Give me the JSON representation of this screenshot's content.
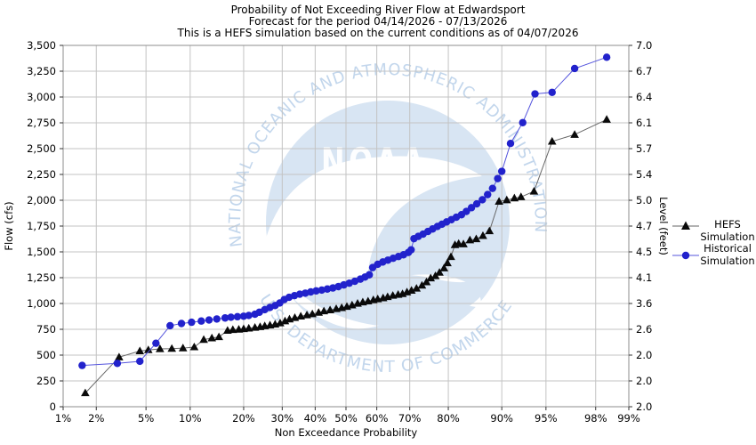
{
  "title": {
    "line1": "Probability of Not Exceeding River Flow at Edwardsport",
    "line2": "Forecast for the period  04/14/2026 - 07/13/2026",
    "line3": "This is a HEFS simulation based on the current conditions as of 04/07/2026"
  },
  "watermark": {
    "ring_text_top": "NATIONAL OCEANIC AND ATMOSPHERIC ADMINISTRATION",
    "ring_text_bottom": "U.S. DEPARTMENT OF COMMERCE",
    "acronym": "NOAA",
    "circle_color": "#d8e5f3",
    "ring_text_color": "#c2d6ec",
    "gull_color": "#ffffff"
  },
  "legend": {
    "items": [
      {
        "lines": [
          "HEFS",
          "Simulation"
        ],
        "marker": "triangle"
      },
      {
        "lines": [
          "Historical",
          "Simulation"
        ],
        "marker": "circle"
      }
    ]
  },
  "chart_data": {
    "type": "line",
    "x_scale": "normal-probability",
    "title": "Probability of Not Exceeding River Flow at Edwardsport",
    "xlabel": "Non Exceedance Probability",
    "ylabel_left": "Flow (cfs)",
    "ylabel_right": "Level (feet)",
    "xlim_percent": [
      1,
      99
    ],
    "ylim": [
      0,
      3500
    ],
    "grid": true,
    "legend_position": "right-outside",
    "x_ticks_percent": [
      1,
      2,
      5,
      10,
      20,
      30,
      40,
      50,
      60,
      70,
      80,
      90,
      95,
      98,
      99
    ],
    "x_tick_labels": [
      "1%",
      "2%",
      "5%",
      "10%",
      "20%",
      "30%",
      "40%",
      "50%",
      "60%",
      "70%",
      "80%",
      "90%",
      "95%",
      "98%",
      "99%"
    ],
    "y_ticks_flow": [
      0,
      250,
      500,
      750,
      1000,
      1250,
      1500,
      1750,
      2000,
      2250,
      2500,
      2750,
      3000,
      3250,
      3500
    ],
    "y_tick_labels_flow": [
      "0",
      "250",
      "500",
      "750",
      "1,000",
      "1,250",
      "1,500",
      "1,750",
      "2,000",
      "2,250",
      "2,500",
      "2,750",
      "3,000",
      "3,250",
      "3,500"
    ],
    "y_tick_labels_level": [
      "2.0",
      "2.0",
      "2.0",
      "2.6",
      "3.6",
      "4.1",
      "4.5",
      "4.7",
      "5.0",
      "5.4",
      "5.7",
      "6.1",
      "6.4",
      "6.7",
      "7.0"
    ],
    "colors": {
      "grid": "#c3c3c3",
      "border": "#8c8c8c",
      "hefs_marker": "#0a0a0a",
      "hefs_line": "#666666",
      "historical_marker": "#2222cc",
      "historical_line": "#5555dd"
    },
    "series": [
      {
        "name": "HEFS Simulation",
        "marker": "triangle",
        "points": [
          [
            1.6,
            133
          ],
          [
            3.1,
            480
          ],
          [
            4.5,
            540
          ],
          [
            5.2,
            550
          ],
          [
            6.3,
            560
          ],
          [
            7.6,
            563
          ],
          [
            9.0,
            568
          ],
          [
            10.6,
            578
          ],
          [
            12.1,
            650
          ],
          [
            13.5,
            665
          ],
          [
            14.8,
            676
          ],
          [
            16.5,
            738
          ],
          [
            17.6,
            746
          ],
          [
            18.9,
            749
          ],
          [
            20.0,
            754
          ],
          [
            21.2,
            760
          ],
          [
            22.7,
            767
          ],
          [
            24.0,
            774
          ],
          [
            25.2,
            782
          ],
          [
            26.6,
            790
          ],
          [
            28.0,
            798
          ],
          [
            29.4,
            810
          ],
          [
            30.8,
            830
          ],
          [
            32.1,
            848
          ],
          [
            33.7,
            862
          ],
          [
            35.5,
            876
          ],
          [
            37.4,
            888
          ],
          [
            39.1,
            898
          ],
          [
            41.1,
            912
          ],
          [
            42.8,
            926
          ],
          [
            44.8,
            936
          ],
          [
            46.8,
            948
          ],
          [
            48.6,
            958
          ],
          [
            50.3,
            970
          ],
          [
            52.0,
            984
          ],
          [
            53.8,
            1000
          ],
          [
            55.5,
            1013
          ],
          [
            57.2,
            1022
          ],
          [
            58.9,
            1034
          ],
          [
            60.3,
            1043
          ],
          [
            62.0,
            1053
          ],
          [
            63.4,
            1064
          ],
          [
            65.0,
            1077
          ],
          [
            66.6,
            1086
          ],
          [
            67.9,
            1093
          ],
          [
            69.2,
            1110
          ],
          [
            70.5,
            1126
          ],
          [
            71.9,
            1146
          ],
          [
            73.4,
            1175
          ],
          [
            74.6,
            1208
          ],
          [
            75.7,
            1246
          ],
          [
            76.9,
            1267
          ],
          [
            77.9,
            1300
          ],
          [
            79.0,
            1342
          ],
          [
            79.8,
            1392
          ],
          [
            80.6,
            1452
          ],
          [
            81.5,
            1568
          ],
          [
            82.3,
            1580
          ],
          [
            83.3,
            1575
          ],
          [
            84.6,
            1614
          ],
          [
            85.8,
            1625
          ],
          [
            87.0,
            1656
          ],
          [
            88.1,
            1702
          ],
          [
            89.6,
            1988
          ],
          [
            90.7,
            2002
          ],
          [
            91.7,
            2020
          ],
          [
            92.5,
            2032
          ],
          [
            93.9,
            2086
          ],
          [
            95.5,
            2570
          ],
          [
            97.0,
            2636
          ],
          [
            98.4,
            2782
          ]
        ]
      },
      {
        "name": "Historical Simulation",
        "marker": "circle",
        "points": [
          [
            1.5,
            400
          ],
          [
            3.0,
            420
          ],
          [
            4.5,
            440
          ],
          [
            5.9,
            615
          ],
          [
            7.4,
            785
          ],
          [
            8.8,
            806
          ],
          [
            10.2,
            818
          ],
          [
            11.7,
            830
          ],
          [
            13.0,
            840
          ],
          [
            14.4,
            850
          ],
          [
            16.0,
            860
          ],
          [
            17.2,
            867
          ],
          [
            18.6,
            872
          ],
          [
            20.0,
            877
          ],
          [
            21.2,
            884
          ],
          [
            22.7,
            896
          ],
          [
            23.8,
            915
          ],
          [
            25.2,
            940
          ],
          [
            26.6,
            962
          ],
          [
            28.0,
            980
          ],
          [
            29.3,
            1005
          ],
          [
            30.6,
            1038
          ],
          [
            32.0,
            1060
          ],
          [
            33.6,
            1076
          ],
          [
            35.2,
            1090
          ],
          [
            36.9,
            1100
          ],
          [
            38.6,
            1112
          ],
          [
            40.3,
            1122
          ],
          [
            42.1,
            1130
          ],
          [
            43.9,
            1140
          ],
          [
            45.7,
            1150
          ],
          [
            47.5,
            1163
          ],
          [
            49.3,
            1180
          ],
          [
            51.1,
            1197
          ],
          [
            52.9,
            1215
          ],
          [
            54.7,
            1236
          ],
          [
            56.2,
            1256
          ],
          [
            57.6,
            1278
          ],
          [
            58.7,
            1348
          ],
          [
            60.3,
            1380
          ],
          [
            61.9,
            1402
          ],
          [
            63.5,
            1420
          ],
          [
            65.1,
            1438
          ],
          [
            66.7,
            1455
          ],
          [
            68.2,
            1472
          ],
          [
            69.6,
            1494
          ],
          [
            70.4,
            1520
          ],
          [
            71.2,
            1628
          ],
          [
            72.4,
            1650
          ],
          [
            73.7,
            1672
          ],
          [
            75.0,
            1698
          ],
          [
            76.2,
            1722
          ],
          [
            77.4,
            1746
          ],
          [
            78.5,
            1768
          ],
          [
            79.6,
            1790
          ],
          [
            80.7,
            1812
          ],
          [
            81.8,
            1836
          ],
          [
            82.9,
            1860
          ],
          [
            83.9,
            1892
          ],
          [
            84.9,
            1928
          ],
          [
            85.9,
            1965
          ],
          [
            86.9,
            2005
          ],
          [
            87.8,
            2055
          ],
          [
            88.6,
            2115
          ],
          [
            89.4,
            2210
          ],
          [
            90.0,
            2280
          ],
          [
            91.2,
            2550
          ],
          [
            92.7,
            2752
          ],
          [
            94.0,
            3030
          ],
          [
            95.5,
            3045
          ],
          [
            97.0,
            3276
          ],
          [
            98.4,
            3385
          ]
        ]
      }
    ]
  }
}
